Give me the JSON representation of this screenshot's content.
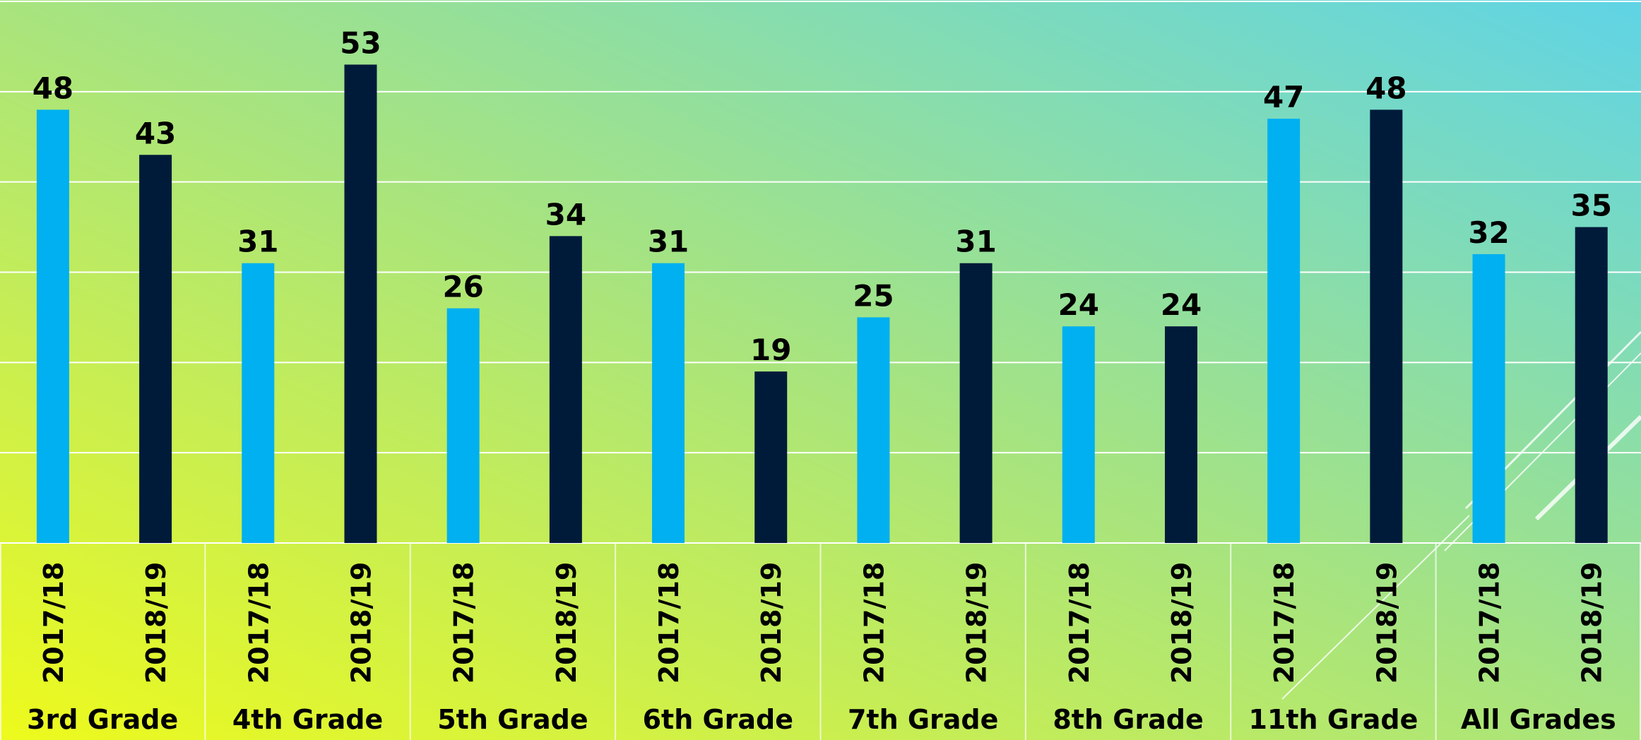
{
  "chart_data": {
    "type": "bar",
    "categories": [
      "3rd Grade",
      "4th Grade",
      "5th Grade",
      "6th Grade",
      "7th Grade",
      "8th Grade",
      "11th Grade",
      "All Grades"
    ],
    "series": [
      {
        "name": "2017/18",
        "color": "#00b0f0",
        "values": [
          48,
          31,
          26,
          31,
          25,
          24,
          47,
          32
        ]
      },
      {
        "name": "2018/19",
        "color": "#001b3a",
        "values": [
          43,
          53,
          34,
          19,
          31,
          24,
          48,
          35
        ]
      }
    ],
    "ylim": [
      0,
      60
    ],
    "yticks": [
      0,
      10,
      20,
      30,
      40,
      50,
      60
    ],
    "grid": true
  }
}
